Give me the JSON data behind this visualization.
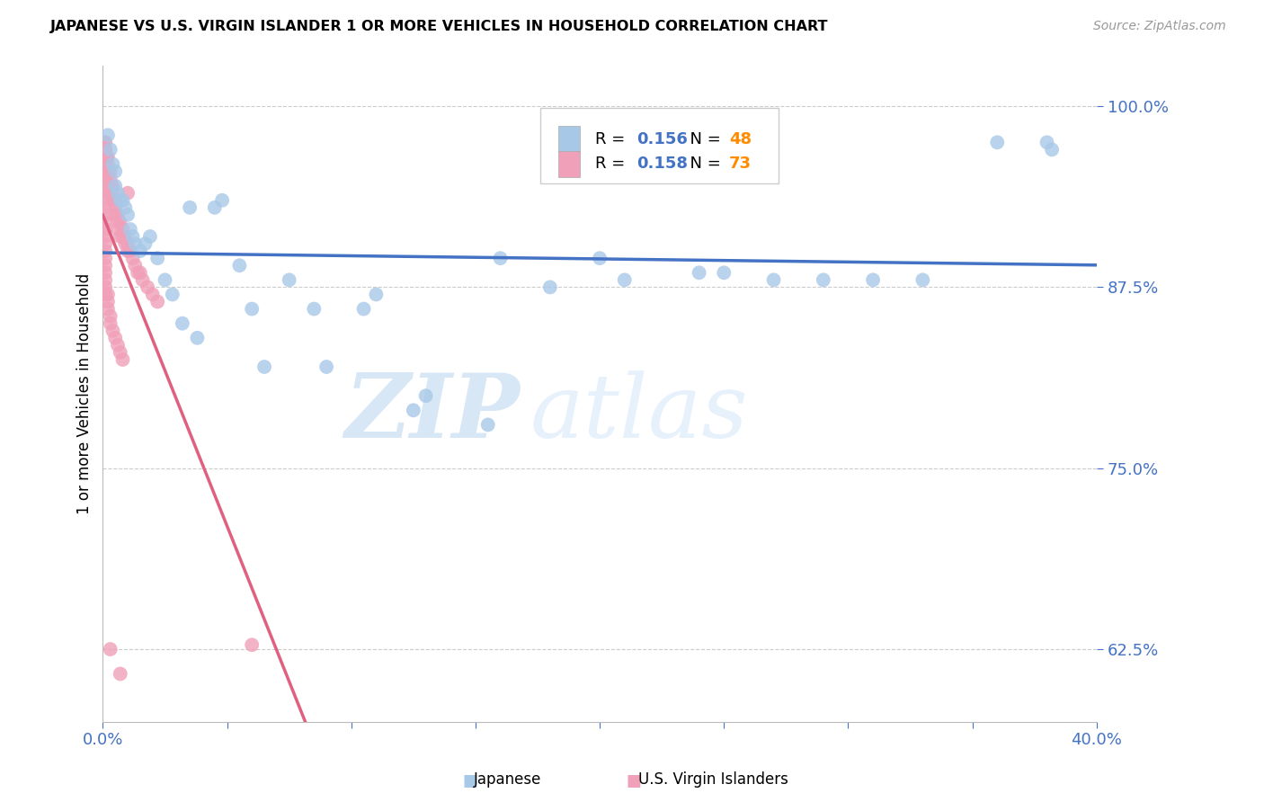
{
  "title": "JAPANESE VS U.S. VIRGIN ISLANDER 1 OR MORE VEHICLES IN HOUSEHOLD CORRELATION CHART",
  "source": "Source: ZipAtlas.com",
  "ylabel": "1 or more Vehicles in Household",
  "watermark_zip": "ZIP",
  "watermark_atlas": "atlas",
  "xmin": 0.0,
  "xmax": 0.4,
  "ymin": 0.575,
  "ymax": 1.028,
  "ytick_positions": [
    0.625,
    0.75,
    0.875,
    1.0
  ],
  "ytick_labels": [
    "62.5%",
    "75.0%",
    "87.5%",
    "100.0%"
  ],
  "xtick_pos": [
    0.0,
    0.05,
    0.1,
    0.15,
    0.2,
    0.25,
    0.3,
    0.35,
    0.4
  ],
  "xtick_labels": [
    "0.0%",
    "",
    "",
    "",
    "",
    "",
    "",
    "",
    "40.0%"
  ],
  "blue_R": 0.156,
  "blue_N": 48,
  "pink_R": 0.158,
  "pink_N": 73,
  "blue_color": "#A8C8E8",
  "pink_color": "#F0A0B8",
  "blue_line_color": "#4472C4",
  "pink_line_color": "#E06080",
  "grid_color": "#CCCCCC",
  "axis_color": "#4472C4",
  "legend_text_color": "#4472C4",
  "legend_N_color": "#FF8C00",
  "blue_x": [
    0.002,
    0.003,
    0.004,
    0.005,
    0.005,
    0.006,
    0.007,
    0.008,
    0.009,
    0.01,
    0.011,
    0.012,
    0.013,
    0.015,
    0.017,
    0.019,
    0.022,
    0.025,
    0.028,
    0.032,
    0.038,
    0.045,
    0.055,
    0.065,
    0.075,
    0.09,
    0.11,
    0.13,
    0.155,
    0.18,
    0.21,
    0.24,
    0.27,
    0.31,
    0.36,
    0.38,
    0.382,
    0.16,
    0.2,
    0.25,
    0.29,
    0.33,
    0.105,
    0.125,
    0.085,
    0.06,
    0.048,
    0.035
  ],
  "blue_y": [
    0.98,
    0.97,
    0.96,
    0.955,
    0.945,
    0.94,
    0.935,
    0.935,
    0.93,
    0.925,
    0.915,
    0.91,
    0.905,
    0.9,
    0.905,
    0.91,
    0.895,
    0.88,
    0.87,
    0.85,
    0.84,
    0.93,
    0.89,
    0.82,
    0.88,
    0.82,
    0.87,
    0.8,
    0.78,
    0.875,
    0.88,
    0.885,
    0.88,
    0.88,
    0.975,
    0.975,
    0.97,
    0.895,
    0.895,
    0.885,
    0.88,
    0.88,
    0.86,
    0.79,
    0.86,
    0.86,
    0.935,
    0.93
  ],
  "pink_x": [
    0.0005,
    0.001,
    0.001,
    0.001,
    0.0015,
    0.002,
    0.002,
    0.002,
    0.003,
    0.003,
    0.003,
    0.003,
    0.004,
    0.004,
    0.004,
    0.005,
    0.005,
    0.005,
    0.006,
    0.006,
    0.006,
    0.007,
    0.007,
    0.008,
    0.008,
    0.009,
    0.009,
    0.01,
    0.01,
    0.011,
    0.012,
    0.013,
    0.014,
    0.015,
    0.016,
    0.018,
    0.02,
    0.022,
    0.001,
    0.001,
    0.001,
    0.001,
    0.001,
    0.001,
    0.001,
    0.001,
    0.001,
    0.001,
    0.001,
    0.001,
    0.001,
    0.001,
    0.001,
    0.001,
    0.001,
    0.001,
    0.001,
    0.001,
    0.001,
    0.002,
    0.002,
    0.002,
    0.003,
    0.003,
    0.004,
    0.005,
    0.006,
    0.007,
    0.008,
    0.003,
    0.06,
    0.007,
    0.01
  ],
  "pink_y": [
    0.975,
    0.975,
    0.97,
    0.965,
    0.965,
    0.965,
    0.96,
    0.955,
    0.955,
    0.95,
    0.945,
    0.94,
    0.945,
    0.94,
    0.935,
    0.935,
    0.93,
    0.925,
    0.925,
    0.92,
    0.915,
    0.92,
    0.91,
    0.915,
    0.91,
    0.91,
    0.905,
    0.905,
    0.9,
    0.9,
    0.895,
    0.89,
    0.885,
    0.885,
    0.88,
    0.875,
    0.87,
    0.865,
    0.97,
    0.965,
    0.96,
    0.955,
    0.95,
    0.945,
    0.94,
    0.935,
    0.93,
    0.925,
    0.92,
    0.915,
    0.91,
    0.905,
    0.9,
    0.895,
    0.89,
    0.885,
    0.88,
    0.875,
    0.87,
    0.87,
    0.865,
    0.86,
    0.855,
    0.85,
    0.845,
    0.84,
    0.835,
    0.83,
    0.825,
    0.625,
    0.628,
    0.608,
    0.94
  ]
}
